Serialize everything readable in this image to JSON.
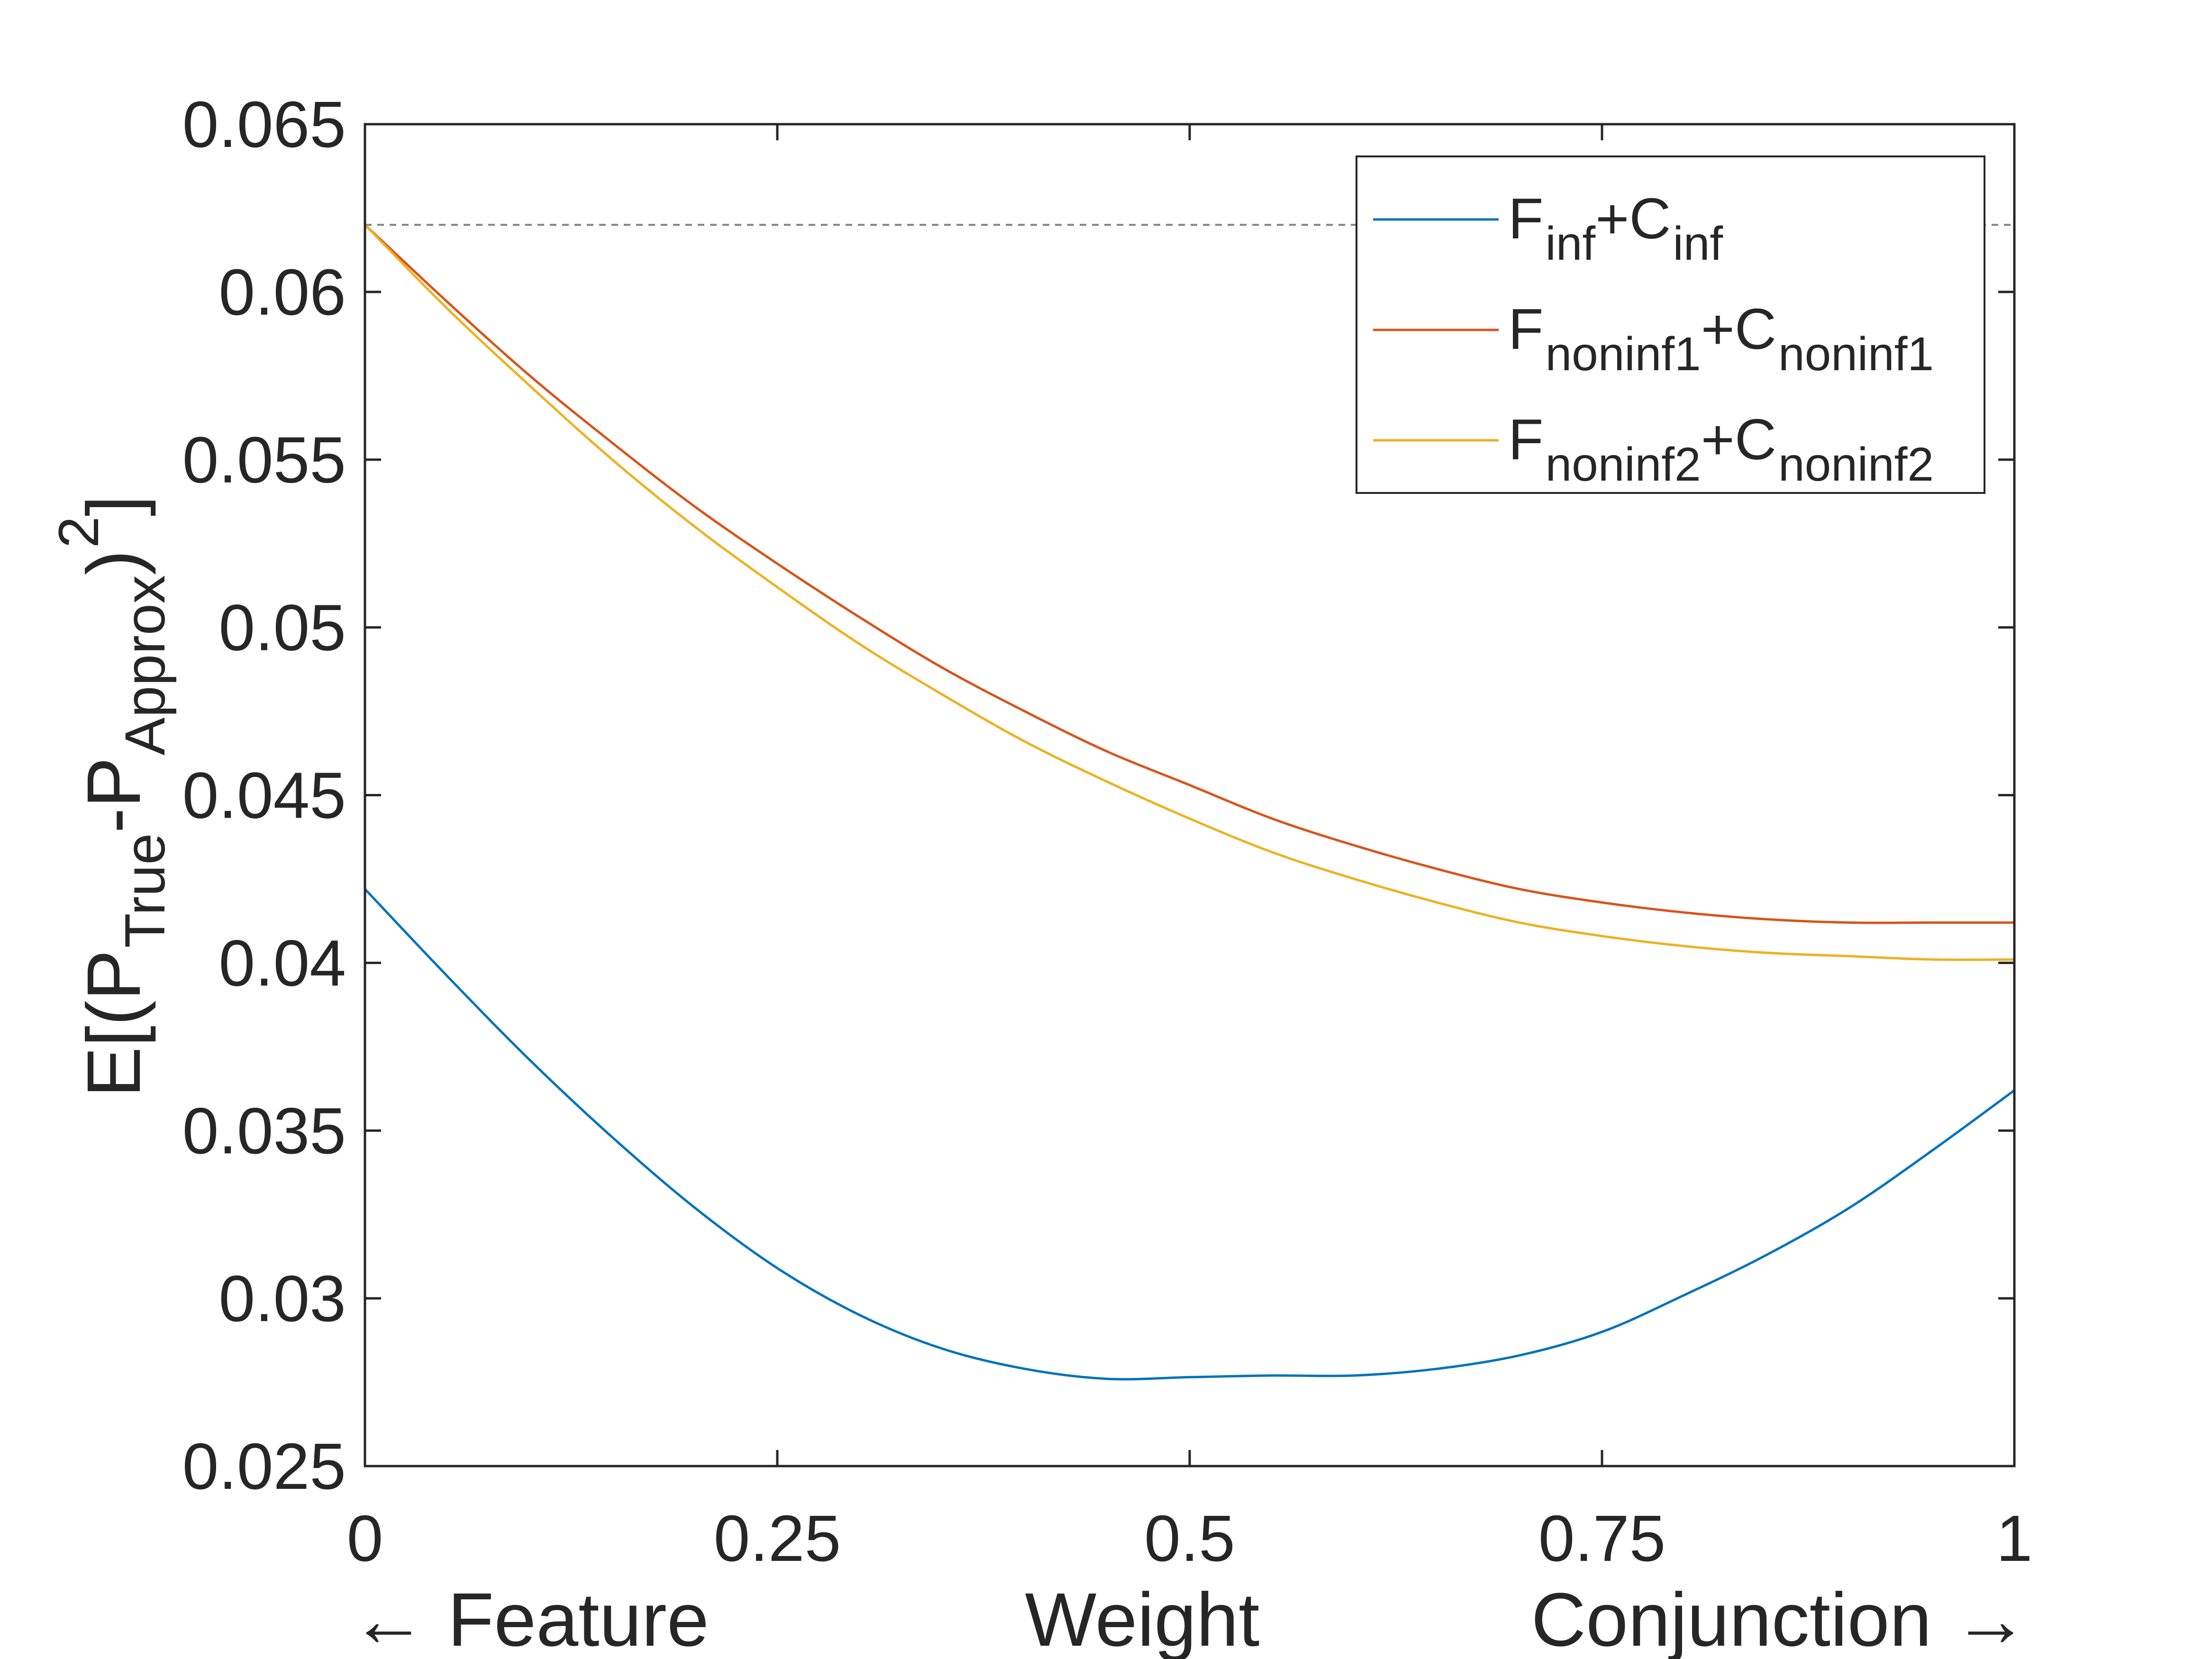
{
  "chart_data": {
    "type": "line",
    "xlabel_left": "← Feature",
    "xlabel_center": "Weight",
    "xlabel_right": "Conjunction →",
    "ylabel": {
      "parts": [
        {
          "text": "E[(P",
          "sub": false,
          "sup": false
        },
        {
          "text": "True",
          "sub": true,
          "sup": false
        },
        {
          "text": "-P",
          "sub": false,
          "sup": false
        },
        {
          "text": "Approx",
          "sub": true,
          "sup": false
        },
        {
          "text": ")",
          "sub": false,
          "sup": false
        },
        {
          "text": "2",
          "sub": false,
          "sup": true
        },
        {
          "text": "]",
          "sub": false,
          "sup": false
        }
      ]
    },
    "xlim": [
      0,
      1
    ],
    "ylim": [
      0.025,
      0.065
    ],
    "xticks": [
      {
        "value": 0,
        "label": "0"
      },
      {
        "value": 0.25,
        "label": "0.25"
      },
      {
        "value": 0.5,
        "label": "0.5"
      },
      {
        "value": 0.75,
        "label": "0.75"
      },
      {
        "value": 1,
        "label": "1"
      }
    ],
    "yticks": [
      {
        "value": 0.025,
        "label": "0.025"
      },
      {
        "value": 0.03,
        "label": "0.03"
      },
      {
        "value": 0.035,
        "label": "0.035"
      },
      {
        "value": 0.04,
        "label": "0.04"
      },
      {
        "value": 0.045,
        "label": "0.045"
      },
      {
        "value": 0.05,
        "label": "0.05"
      },
      {
        "value": 0.055,
        "label": "0.055"
      },
      {
        "value": 0.06,
        "label": "0.06"
      },
      {
        "value": 0.065,
        "label": "0.065"
      }
    ],
    "reference_line": {
      "y": 0.062,
      "style": "dashed",
      "color": "#808080"
    },
    "grid": false,
    "legend_position": "top-right",
    "x": [
      0,
      0.05,
      0.1,
      0.15,
      0.2,
      0.25,
      0.3,
      0.35,
      0.4,
      0.45,
      0.5,
      0.55,
      0.6,
      0.65,
      0.7,
      0.75,
      0.8,
      0.85,
      0.9,
      0.95,
      1
    ],
    "series": [
      {
        "name": "inf",
        "legend_parts": [
          {
            "text": "F",
            "sub": false
          },
          {
            "text": "inf",
            "sub": true
          },
          {
            "text": "+C",
            "sub": false
          },
          {
            "text": "inf",
            "sub": true
          }
        ],
        "color": "#0072BD",
        "values": [
          0.0422,
          0.0396,
          0.0371,
          0.0348,
          0.0327,
          0.0309,
          0.0295,
          0.0285,
          0.0279,
          0.0276,
          0.02765,
          0.0277,
          0.0277,
          0.0279,
          0.0283,
          0.029,
          0.0301,
          0.0313,
          0.0327,
          0.0344,
          0.0362
        ]
      },
      {
        "name": "noninf1",
        "legend_parts": [
          {
            "text": "F",
            "sub": false
          },
          {
            "text": "noninf1",
            "sub": true
          },
          {
            "text": "+C",
            "sub": false
          },
          {
            "text": "noninf1",
            "sub": true
          }
        ],
        "color": "#D95319",
        "values": [
          0.062,
          0.0597,
          0.0575,
          0.0555,
          0.0536,
          0.0519,
          0.0503,
          0.0488,
          0.0475,
          0.0463,
          0.0453,
          0.0443,
          0.0435,
          0.0428,
          0.0422,
          0.0418,
          0.0415,
          0.0413,
          0.0412,
          0.0412,
          0.0412
        ]
      },
      {
        "name": "noninf2",
        "legend_parts": [
          {
            "text": "F",
            "sub": false
          },
          {
            "text": "noninf2",
            "sub": true
          },
          {
            "text": "+C",
            "sub": false
          },
          {
            "text": "noninf2",
            "sub": true
          }
        ],
        "color": "#EDB120",
        "values": [
          0.062,
          0.0595,
          0.0572,
          0.055,
          0.053,
          0.0512,
          0.0495,
          0.048,
          0.0466,
          0.0454,
          0.0443,
          0.0433,
          0.0425,
          0.0418,
          0.0412,
          0.0408,
          0.0405,
          0.0403,
          0.0402,
          0.0401,
          0.0401
        ]
      }
    ]
  }
}
